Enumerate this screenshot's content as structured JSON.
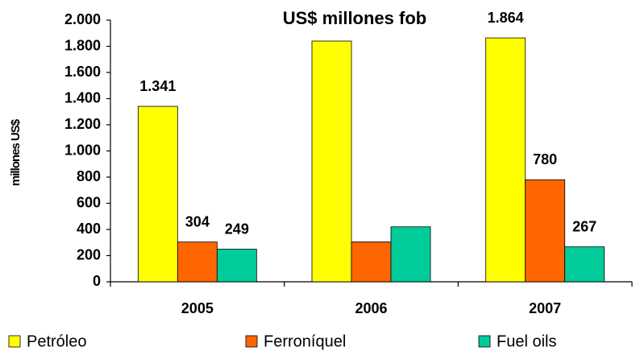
{
  "chart_data": {
    "type": "bar",
    "title": "US$ millones fob",
    "y_label": "millones US$",
    "categories": [
      "2005",
      "2006",
      "2007"
    ],
    "series": [
      {
        "name": "Petróleo",
        "color": "#ffff00",
        "values": [
          1341,
          1840,
          1864
        ],
        "value_labels": [
          "1.341",
          null,
          "1.864"
        ]
      },
      {
        "name": "Ferroníquel",
        "color": "#ff6600",
        "values": [
          304,
          305,
          780
        ],
        "value_labels": [
          "304",
          null,
          "780"
        ]
      },
      {
        "name": "Fuel oils",
        "color": "#00cc99",
        "values": [
          249,
          420,
          267
        ],
        "value_labels": [
          "249",
          null,
          "267"
        ]
      }
    ],
    "ylim": [
      0,
      2000
    ],
    "yticks": [
      0,
      200,
      400,
      600,
      800,
      {
        "value": 1000,
        "label": "1.000"
      },
      {
        "value": 1200,
        "label": "1.200"
      },
      {
        "value": 1400,
        "label": "1.400"
      },
      {
        "value": 1600,
        "label": "1.600"
      },
      {
        "value": 1800,
        "label": "1.800"
      },
      {
        "value": 2000,
        "label": "2.000"
      }
    ],
    "grid": false,
    "legend": "bottom"
  }
}
